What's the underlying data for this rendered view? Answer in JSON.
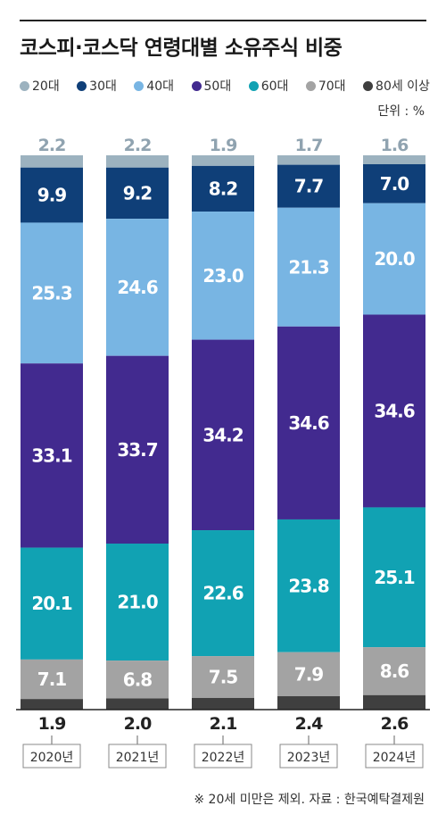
{
  "title": "코스피·코스닥 연령대별 소유주식 비중",
  "unit_label": "단위 : %",
  "footnote": "※ 20세 미만은 제외. 자료 : 한국예탁결제원",
  "colors": {
    "20s": "#9cb2bf",
    "30s": "#0f3f78",
    "40s": "#78b5e3",
    "50s": "#422a8f",
    "60s": "#11a2b3",
    "70s": "#a3a3a3",
    "80s": "#3f3f3f",
    "top_label": "#90a3b0",
    "bottom_label": "#222222"
  },
  "legend": [
    {
      "label": "20대",
      "color": "#9cb2bf"
    },
    {
      "label": "30대",
      "color": "#0f3f78"
    },
    {
      "label": "40대",
      "color": "#78b5e3"
    },
    {
      "label": "50대",
      "color": "#422a8f"
    },
    {
      "label": "60대",
      "color": "#11a2b3"
    },
    {
      "label": "70대",
      "color": "#a3a3a3"
    },
    {
      "label": "80세 이상",
      "color": "#3f3f3f"
    }
  ],
  "chart_data": {
    "type": "bar",
    "stacked": true,
    "categories": [
      "2020년",
      "2021년",
      "2022년",
      "2023년",
      "2024년"
    ],
    "series": [
      {
        "name": "20대",
        "values": [
          2.2,
          2.2,
          1.9,
          1.7,
          1.6
        ]
      },
      {
        "name": "30대",
        "values": [
          9.9,
          9.2,
          8.2,
          7.7,
          7.0
        ]
      },
      {
        "name": "40대",
        "values": [
          25.3,
          24.6,
          23.0,
          21.3,
          20.0
        ]
      },
      {
        "name": "50대",
        "values": [
          33.1,
          33.7,
          34.2,
          34.6,
          34.6
        ]
      },
      {
        "name": "60대",
        "values": [
          20.1,
          21.0,
          22.6,
          23.8,
          25.1
        ]
      },
      {
        "name": "70대",
        "values": [
          7.1,
          6.8,
          7.5,
          7.9,
          8.6
        ]
      },
      {
        "name": "80세 이상",
        "values": [
          1.9,
          2.0,
          2.1,
          2.4,
          2.6
        ]
      }
    ],
    "value_labels": [
      [
        "2.2",
        "9.9",
        "25.3",
        "33.1",
        "20.1",
        "7.1",
        "1.9"
      ],
      [
        "2.2",
        "9.2",
        "24.6",
        "33.7",
        "21.0",
        "6.8",
        "2.0"
      ],
      [
        "1.9",
        "8.2",
        "23.0",
        "34.2",
        "22.6",
        "7.5",
        "2.1"
      ],
      [
        "1.7",
        "7.7",
        "21.3",
        "34.6",
        "23.8",
        "7.9",
        "2.4"
      ],
      [
        "1.6",
        "7.0",
        "20.0",
        "34.6",
        "25.1",
        "8.6",
        "2.6"
      ]
    ],
    "ylim": [
      0,
      100
    ],
    "legend_position": "top"
  }
}
